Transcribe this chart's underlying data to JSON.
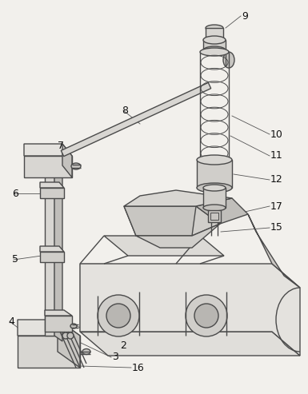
{
  "bg_color": "#f2f0ec",
  "line_color": "#4a4a4a",
  "lw": 1.0,
  "tlw": 0.7,
  "fig_w": 3.85,
  "fig_h": 4.93,
  "dpi": 100
}
